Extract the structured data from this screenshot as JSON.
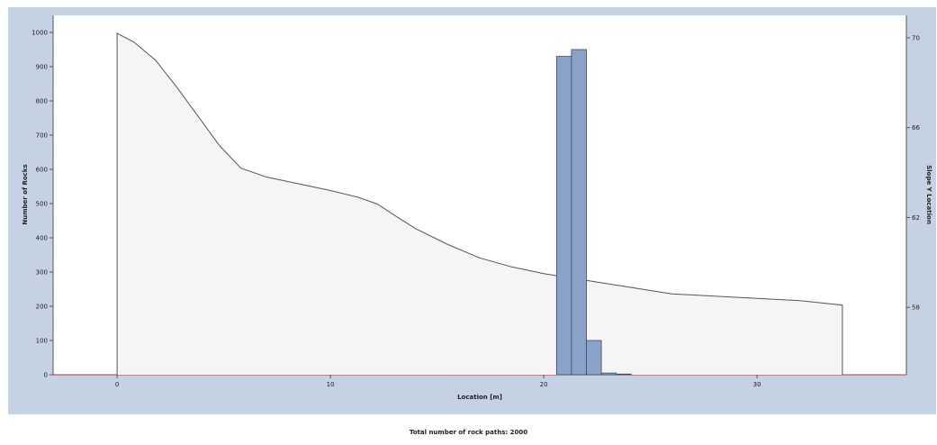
{
  "chart_data": {
    "type": "bar",
    "title": "",
    "xlabel": "Location [m]",
    "ylabel": "Number of Rocks",
    "y2label": "Slope Y Location",
    "xlim": [
      -3,
      37
    ],
    "ylim": [
      0,
      1050
    ],
    "y2lim": [
      55,
      71
    ],
    "x_ticks": [
      0,
      10,
      20,
      30
    ],
    "y_ticks": [
      0,
      100,
      200,
      300,
      400,
      500,
      600,
      700,
      800,
      900,
      1000
    ],
    "y2_ticks": [
      58,
      62,
      66,
      70
    ],
    "grid": false,
    "histogram": {
      "bin_width": 0.7,
      "bins": [
        {
          "x": 20.6,
          "count": 930
        },
        {
          "x": 21.3,
          "count": 950
        },
        {
          "x": 22.0,
          "count": 100
        },
        {
          "x": 22.7,
          "count": 5
        },
        {
          "x": 23.4,
          "count": 2
        }
      ]
    },
    "slope_profile": {
      "x": [
        0,
        0.8,
        1.8,
        2.8,
        3.8,
        4.8,
        5.8,
        7,
        8.5,
        10,
        11.3,
        12.2,
        13,
        14,
        15.5,
        17,
        18.5,
        20,
        22,
        24,
        26,
        28,
        30,
        32,
        34
      ],
      "y": [
        70.2,
        69.8,
        69.0,
        67.8,
        66.5,
        65.2,
        64.2,
        63.8,
        63.5,
        63.2,
        62.9,
        62.6,
        62.1,
        61.5,
        60.8,
        60.2,
        59.8,
        59.5,
        59.2,
        58.9,
        58.6,
        58.5,
        58.4,
        58.3,
        58.1
      ]
    }
  },
  "footer": {
    "label": "Total number of rock paths:",
    "value": "2000"
  }
}
